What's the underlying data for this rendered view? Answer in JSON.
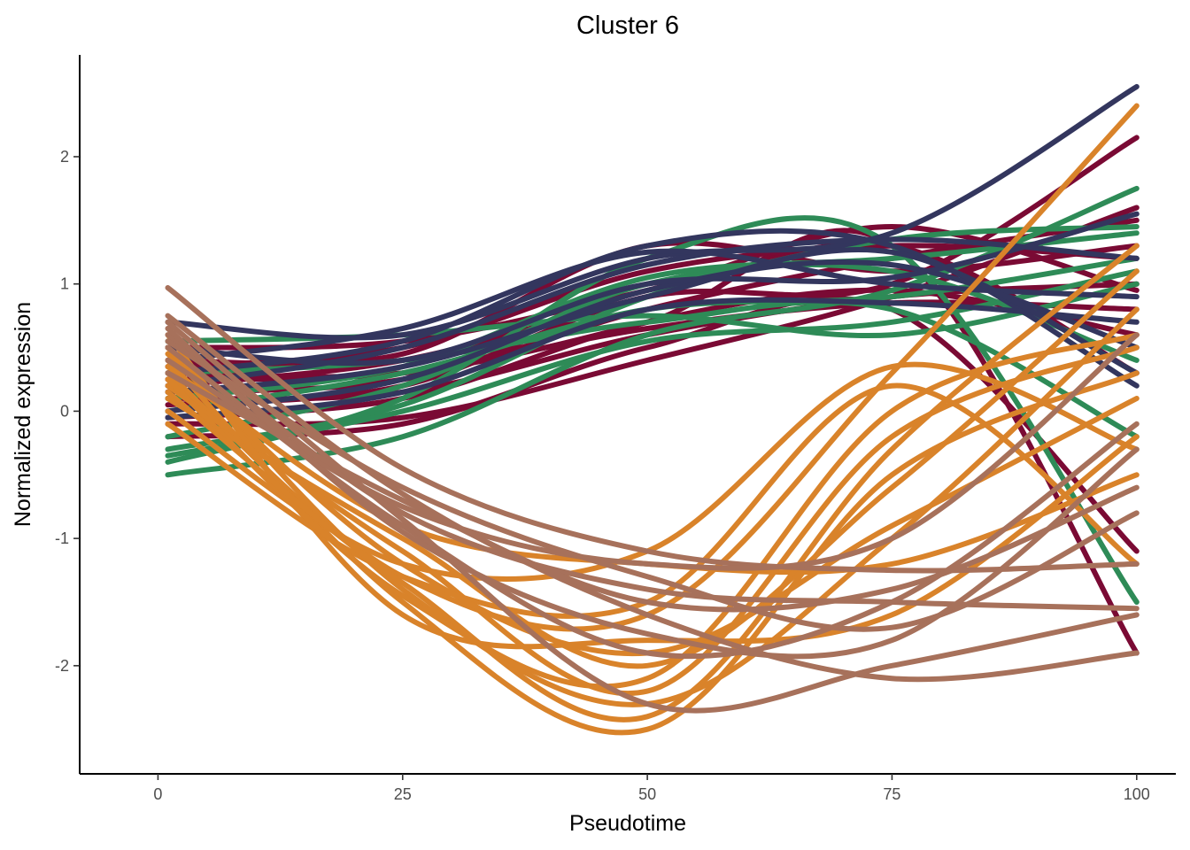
{
  "chart_data": {
    "type": "line",
    "title": "Cluster 6",
    "xlabel": "Pseudotime",
    "ylabel": "Normalized expression",
    "xlim": [
      -8,
      104
    ],
    "ylim": [
      -2.85,
      2.8
    ],
    "xticks": [
      0,
      25,
      50,
      75,
      100
    ],
    "yticks": [
      -2,
      -1,
      0,
      1,
      2
    ],
    "grid": false,
    "legend": "none",
    "x": [
      1,
      25,
      50,
      75,
      100
    ],
    "series_colors": [
      "#7a0a34",
      "#2e8b57",
      "#33365e",
      "#d9832a",
      "#a7715b"
    ],
    "series": [
      {
        "color": "#7a0a34",
        "values": [
          0.25,
          0.3,
          0.65,
          0.85,
          0.8
        ]
      },
      {
        "color": "#7a0a34",
        "values": [
          0.15,
          0.25,
          0.8,
          1.2,
          1.5
        ]
      },
      {
        "color": "#7a0a34",
        "values": [
          -0.1,
          -0.05,
          0.4,
          0.9,
          1.6
        ]
      },
      {
        "color": "#7a0a34",
        "values": [
          0.4,
          0.45,
          1.3,
          1.1,
          1.3
        ]
      },
      {
        "color": "#7a0a34",
        "values": [
          0.05,
          0.2,
          0.9,
          1.0,
          2.15
        ]
      },
      {
        "color": "#7a0a34",
        "values": [
          0.3,
          0.3,
          0.7,
          1.3,
          -1.9
        ]
      },
      {
        "color": "#7a0a34",
        "values": [
          -0.2,
          -0.1,
          0.5,
          0.8,
          -1.1
        ]
      },
      {
        "color": "#7a0a34",
        "values": [
          0.2,
          0.4,
          0.9,
          1.3,
          0.3
        ]
      },
      {
        "color": "#7a0a34",
        "values": [
          0.1,
          0.15,
          0.6,
          0.9,
          1.0
        ]
      },
      {
        "color": "#7a0a34",
        "values": [
          0.35,
          0.5,
          1.1,
          1.3,
          1.2
        ]
      },
      {
        "color": "#7a0a34",
        "values": [
          -0.05,
          0.1,
          0.7,
          0.95,
          0.6
        ]
      },
      {
        "color": "#7a0a34",
        "values": [
          0.5,
          0.55,
          0.95,
          1.45,
          0.95
        ]
      },
      {
        "color": "#2e8b57",
        "values": [
          -0.5,
          -0.2,
          0.6,
          0.95,
          1.75
        ]
      },
      {
        "color": "#2e8b57",
        "values": [
          0.55,
          0.6,
          0.75,
          0.6,
          1.0
        ]
      },
      {
        "color": "#2e8b57",
        "values": [
          -0.3,
          0.05,
          0.9,
          1.35,
          1.45
        ]
      },
      {
        "color": "#2e8b57",
        "values": [
          -0.4,
          0.1,
          1.2,
          1.3,
          -1.5
        ]
      },
      {
        "color": "#2e8b57",
        "values": [
          0.0,
          0.3,
          0.8,
          0.9,
          1.2
        ]
      },
      {
        "color": "#2e8b57",
        "values": [
          -0.2,
          0.2,
          1.0,
          1.1,
          0.4
        ]
      },
      {
        "color": "#2e8b57",
        "values": [
          0.3,
          0.4,
          0.7,
          0.8,
          -0.2
        ]
      },
      {
        "color": "#2e8b57",
        "values": [
          -0.35,
          0.0,
          0.55,
          0.7,
          1.1
        ]
      },
      {
        "color": "#2e8b57",
        "values": [
          0.1,
          0.35,
          1.05,
          1.2,
          1.4
        ]
      },
      {
        "color": "#33365e",
        "values": [
          0.7,
          0.6,
          1.2,
          1.4,
          2.55
        ]
      },
      {
        "color": "#33365e",
        "values": [
          0.3,
          0.55,
          1.3,
          1.3,
          0.2
        ]
      },
      {
        "color": "#33365e",
        "values": [
          0.0,
          0.25,
          0.95,
          1.15,
          0.5
        ]
      },
      {
        "color": "#33365e",
        "values": [
          0.5,
          0.4,
          1.0,
          1.05,
          1.55
        ]
      },
      {
        "color": "#33365e",
        "values": [
          0.2,
          0.5,
          1.15,
          1.35,
          1.2
        ]
      },
      {
        "color": "#33365e",
        "values": [
          -0.05,
          0.15,
          0.8,
          0.85,
          0.7
        ]
      },
      {
        "color": "#33365e",
        "values": [
          0.4,
          0.65,
          1.25,
          1.0,
          0.9
        ]
      },
      {
        "color": "#33365e",
        "values": [
          0.15,
          0.35,
          0.9,
          1.25,
          0.3
        ]
      },
      {
        "color": "#d9832a",
        "values": [
          0.3,
          -1.3,
          -1.6,
          0.3,
          2.4
        ]
      },
      {
        "color": "#d9832a",
        "values": [
          0.4,
          -1.5,
          -2.5,
          -0.5,
          0.3
        ]
      },
      {
        "color": "#d9832a",
        "values": [
          0.2,
          -1.1,
          -2.2,
          -0.2,
          0.5
        ]
      },
      {
        "color": "#d9832a",
        "values": [
          0.0,
          -1.2,
          -1.1,
          0.35,
          -0.3
        ]
      },
      {
        "color": "#d9832a",
        "values": [
          0.5,
          -1.4,
          -2.3,
          -1.0,
          0.8
        ]
      },
      {
        "color": "#d9832a",
        "values": [
          0.1,
          -1.0,
          -2.0,
          -0.6,
          1.1
        ]
      },
      {
        "color": "#d9832a",
        "values": [
          0.6,
          -1.6,
          -1.8,
          -1.6,
          -0.2
        ]
      },
      {
        "color": "#d9832a",
        "values": [
          -0.1,
          -1.3,
          -1.5,
          0.2,
          -1.2
        ]
      },
      {
        "color": "#d9832a",
        "values": [
          0.35,
          -0.9,
          -1.2,
          -1.2,
          -0.5
        ]
      },
      {
        "color": "#d9832a",
        "values": [
          0.25,
          -1.45,
          -2.1,
          0.0,
          0.6
        ]
      },
      {
        "color": "#d9832a",
        "values": [
          0.45,
          -1.2,
          -1.9,
          -0.9,
          0.1
        ]
      },
      {
        "color": "#d9832a",
        "values": [
          0.15,
          -1.35,
          -2.4,
          -0.3,
          1.3
        ]
      },
      {
        "color": "#a7715b",
        "values": [
          0.97,
          -0.45,
          -1.1,
          -1.25,
          -1.2
        ]
      },
      {
        "color": "#a7715b",
        "values": [
          0.75,
          -0.65,
          -1.6,
          -2.1,
          -1.9
        ]
      },
      {
        "color": "#a7715b",
        "values": [
          0.6,
          -0.8,
          -1.4,
          -1.5,
          -1.55
        ]
      },
      {
        "color": "#a7715b",
        "values": [
          0.5,
          -0.9,
          -1.9,
          -1.5,
          -0.1
        ]
      },
      {
        "color": "#a7715b",
        "values": [
          0.4,
          -0.75,
          -1.2,
          -1.0,
          0.6
        ]
      },
      {
        "color": "#a7715b",
        "values": [
          0.55,
          -0.6,
          -1.3,
          -1.7,
          -0.8
        ]
      },
      {
        "color": "#a7715b",
        "values": [
          0.7,
          -0.85,
          -2.3,
          -2.0,
          -1.6
        ]
      },
      {
        "color": "#a7715b",
        "values": [
          0.3,
          -0.7,
          -1.5,
          -1.4,
          -0.6
        ]
      },
      {
        "color": "#a7715b",
        "values": [
          0.65,
          -0.95,
          -1.75,
          -1.8,
          -0.3
        ]
      }
    ]
  }
}
